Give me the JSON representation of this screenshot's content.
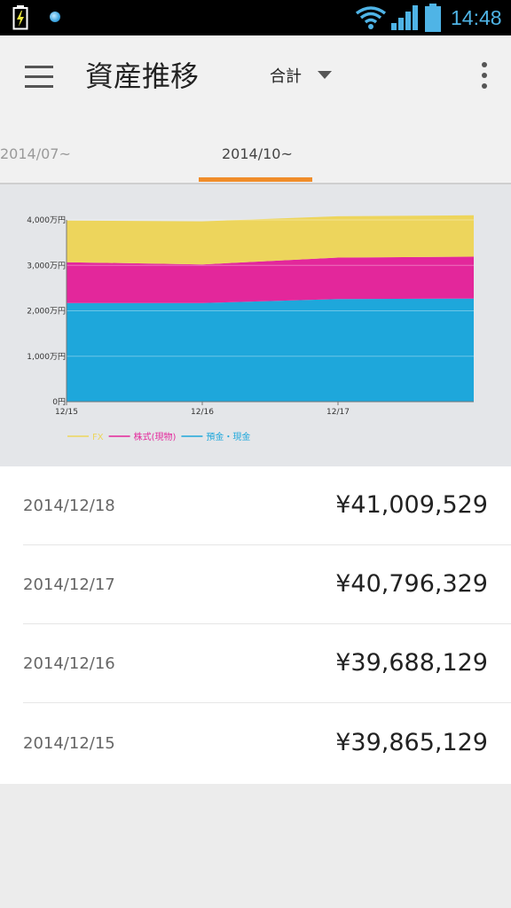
{
  "status_bar": {
    "time": "14:48",
    "icons": [
      "battery-charging-icon",
      "notification-dot-icon",
      "wifi-icon",
      "signal-icon",
      "battery-icon"
    ],
    "time_color": "#4fb4e6"
  },
  "app_bar": {
    "title": "資産推移",
    "selector_label": "合計",
    "menu_icon": "hamburger-menu-icon",
    "overflow_icon": "more-vert-icon"
  },
  "tabs": [
    {
      "label": "2014/07~",
      "selected": false
    },
    {
      "label": "2014/10~",
      "selected": true
    }
  ],
  "accent_color": "#f08d2a",
  "chart_data": {
    "type": "area",
    "stacked": true,
    "x": [
      "12/15",
      "12/16",
      "12/17",
      "12/18"
    ],
    "x_tick_labels": [
      "12/15",
      "12/16",
      "12/17"
    ],
    "y_tick_labels": [
      "4,000万円",
      "3,000万円",
      "2,000万円",
      "1,000万円",
      "0円"
    ],
    "ylim": [
      0,
      40000000
    ],
    "series": [
      {
        "name": "預金・現金",
        "color": "#1ea7db",
        "values": [
          21700000,
          21700000,
          22600000,
          22700000
        ]
      },
      {
        "name": "株式(現物)",
        "color": "#e3279b",
        "values": [
          9000000,
          8500000,
          9100000,
          9200000
        ]
      },
      {
        "name": "FX",
        "color": "#edd55c",
        "values": [
          9165129,
          9488129,
          9096329,
          9109529
        ]
      }
    ],
    "legend_order": [
      "FX",
      "株式(現物)",
      "預金・現金"
    ],
    "grid": true,
    "legend_position": "bottom-left"
  },
  "history": [
    {
      "date": "2014/12/18",
      "amount": "¥41,009,529"
    },
    {
      "date": "2014/12/17",
      "amount": "¥40,796,329"
    },
    {
      "date": "2014/12/16",
      "amount": "¥39,688,129"
    },
    {
      "date": "2014/12/15",
      "amount": "¥39,865,129"
    }
  ]
}
